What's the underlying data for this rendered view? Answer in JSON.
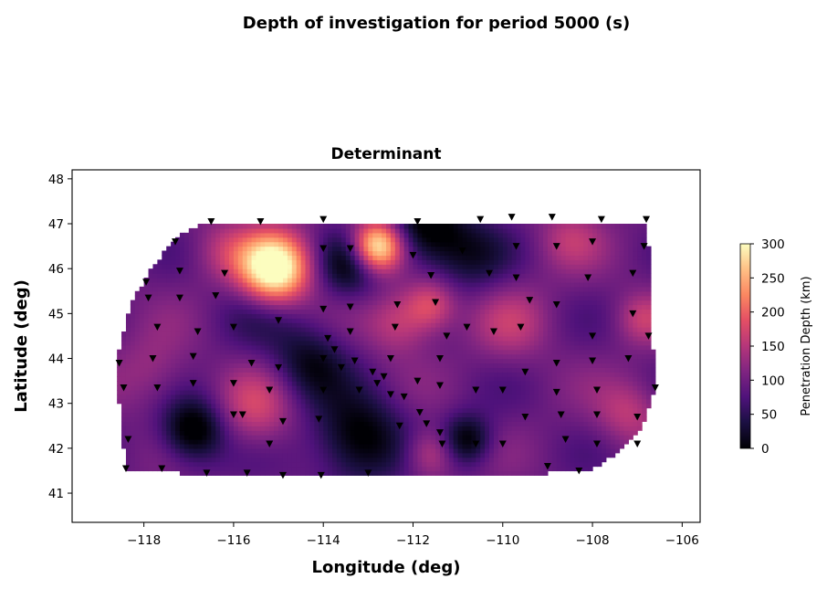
{
  "figure": {
    "suptitle": "Depth of investigation for period  5000 (s)"
  },
  "chart_data": {
    "type": "heatmap",
    "title": "Determinant",
    "xlabel": "Longitude (deg)",
    "ylabel": "Latitude (deg)",
    "xlim": [
      -119.6,
      -105.6
    ],
    "ylim": [
      40.35,
      48.2
    ],
    "xticks": [
      -118,
      -116,
      -114,
      -112,
      -110,
      -108,
      -106
    ],
    "xtick_labels": [
      "−118",
      "−116",
      "−114",
      "−112",
      "−110",
      "−108",
      "−106"
    ],
    "yticks": [
      41,
      42,
      43,
      44,
      45,
      46,
      47,
      48
    ],
    "ytick_labels": [
      "41",
      "42",
      "43",
      "44",
      "45",
      "46",
      "47",
      "48"
    ],
    "grid": false,
    "colormap": "magma",
    "colorbar": {
      "label": "Penetration Depth (km)",
      "range": [
        0,
        300
      ],
      "ticks": [
        0,
        50,
        100,
        150,
        200,
        250,
        300
      ],
      "tick_labels": [
        "0",
        "50",
        "100",
        "150",
        "200",
        "250",
        "300"
      ]
    },
    "stations": [
      [
        -118.55,
        43.9
      ],
      [
        -118.45,
        43.35
      ],
      [
        -118.35,
        42.2
      ],
      [
        -118.4,
        41.55
      ],
      [
        -117.95,
        45.7
      ],
      [
        -117.9,
        45.35
      ],
      [
        -117.8,
        44.0
      ],
      [
        -117.7,
        44.7
      ],
      [
        -117.7,
        43.35
      ],
      [
        -117.6,
        41.55
      ],
      [
        -117.3,
        46.6
      ],
      [
        -117.2,
        45.95
      ],
      [
        -117.2,
        45.35
      ],
      [
        -116.9,
        44.05
      ],
      [
        -116.9,
        43.45
      ],
      [
        -116.8,
        44.6
      ],
      [
        -116.6,
        41.45
      ],
      [
        -116.5,
        47.05
      ],
      [
        -116.4,
        45.4
      ],
      [
        -116.2,
        45.9
      ],
      [
        -116.0,
        44.7
      ],
      [
        -116.0,
        43.45
      ],
      [
        -115.8,
        42.75
      ],
      [
        -115.7,
        41.45
      ],
      [
        -115.4,
        47.05
      ],
      [
        -115.2,
        43.3
      ],
      [
        -115.2,
        42.1
      ],
      [
        -115.0,
        44.85
      ],
      [
        -114.9,
        41.4
      ],
      [
        -114.9,
        42.6
      ],
      [
        -114.0,
        47.1
      ],
      [
        -114.0,
        46.45
      ],
      [
        -114.0,
        45.1
      ],
      [
        -114.0,
        44.0
      ],
      [
        -114.0,
        43.3
      ],
      [
        -114.1,
        42.65
      ],
      [
        -114.05,
        41.4
      ],
      [
        -113.9,
        44.45
      ],
      [
        -113.75,
        44.2
      ],
      [
        -113.6,
        43.8
      ],
      [
        -113.4,
        46.45
      ],
      [
        -113.4,
        45.15
      ],
      [
        -113.4,
        44.6
      ],
      [
        -113.3,
        43.95
      ],
      [
        -113.2,
        43.3
      ],
      [
        -113.0,
        41.45
      ],
      [
        -112.9,
        43.7
      ],
      [
        -112.8,
        43.45
      ],
      [
        -112.65,
        43.6
      ],
      [
        -112.5,
        43.2
      ],
      [
        -112.5,
        44.0
      ],
      [
        -112.4,
        44.7
      ],
      [
        -112.35,
        45.2
      ],
      [
        -112.2,
        43.15
      ],
      [
        -112.0,
        46.3
      ],
      [
        -111.9,
        47.05
      ],
      [
        -111.85,
        42.8
      ],
      [
        -111.7,
        42.55
      ],
      [
        -111.6,
        45.85
      ],
      [
        -111.5,
        45.25
      ],
      [
        -111.4,
        44.0
      ],
      [
        -111.4,
        43.4
      ],
      [
        -111.4,
        42.35
      ],
      [
        -111.35,
        42.1
      ],
      [
        -111.25,
        44.5
      ],
      [
        -110.9,
        46.4
      ],
      [
        -110.8,
        44.7
      ],
      [
        -110.6,
        43.3
      ],
      [
        -110.6,
        42.1
      ],
      [
        -110.5,
        47.1
      ],
      [
        -110.3,
        45.9
      ],
      [
        -110.2,
        44.6
      ],
      [
        -110.0,
        43.3
      ],
      [
        -110.0,
        42.1
      ],
      [
        -109.8,
        47.15
      ],
      [
        -109.7,
        46.5
      ],
      [
        -109.7,
        45.8
      ],
      [
        -109.6,
        44.7
      ],
      [
        -109.5,
        43.7
      ],
      [
        -109.5,
        42.7
      ],
      [
        -109.4,
        45.3
      ],
      [
        -109.0,
        41.6
      ],
      [
        -108.9,
        47.15
      ],
      [
        -108.8,
        46.5
      ],
      [
        -108.8,
        45.2
      ],
      [
        -108.8,
        43.9
      ],
      [
        -108.8,
        43.25
      ],
      [
        -108.7,
        42.75
      ],
      [
        -108.6,
        42.2
      ],
      [
        -108.3,
        41.5
      ],
      [
        -108.1,
        45.8
      ],
      [
        -108.0,
        46.6
      ],
      [
        -108.0,
        44.5
      ],
      [
        -108.0,
        43.95
      ],
      [
        -107.9,
        43.3
      ],
      [
        -107.9,
        42.75
      ],
      [
        -107.9,
        42.1
      ],
      [
        -107.8,
        47.1
      ],
      [
        -107.2,
        44.0
      ],
      [
        -107.1,
        45.9
      ],
      [
        -107.1,
        45.0
      ],
      [
        -107.0,
        42.7
      ],
      [
        -107.0,
        42.1
      ],
      [
        -106.85,
        46.5
      ],
      [
        -106.8,
        47.1
      ],
      [
        -106.75,
        44.5
      ],
      [
        -106.6,
        43.35
      ],
      [
        -116.0,
        42.75
      ],
      [
        -115.6,
        43.9
      ],
      [
        -115.0,
        43.8
      ],
      [
        -112.3,
        42.5
      ],
      [
        -111.9,
        43.5
      ]
    ]
  }
}
